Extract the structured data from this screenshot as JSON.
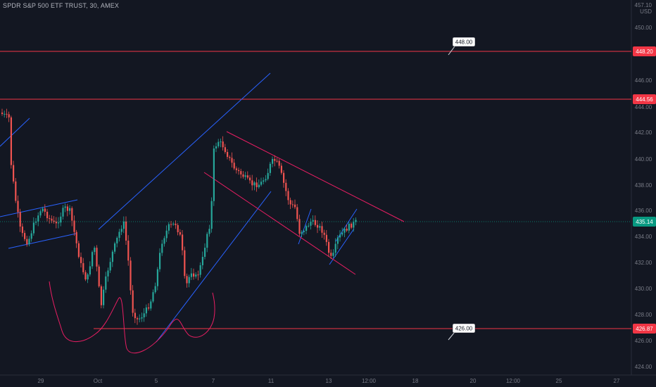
{
  "header": {
    "symbol_title": "SPDR S&P 500 ETF TRUST, 30, AMEX",
    "currency_top": "457.10",
    "currency": "USD"
  },
  "price_axis": {
    "ticks": [
      "450.00",
      "446.00",
      "444.00",
      "442.00",
      "440.00",
      "438.00",
      "436.00",
      "434.00",
      "432.00",
      "430.00",
      "428.00",
      "426.00",
      "424.00"
    ]
  },
  "time_axis": {
    "labels": [
      "29",
      "Oct",
      "5",
      "7",
      "11",
      "13",
      "12:00",
      "18",
      "20",
      "12:00",
      "25",
      "27"
    ]
  },
  "levels": {
    "upper_red": "448.20",
    "mid_red": "444.56",
    "lower_red": "426.87",
    "current": "435.14"
  },
  "callouts": {
    "upper": "448.00",
    "lower": "426.00"
  },
  "colors": {
    "background": "#131722",
    "up_candle": "#26a69a",
    "down_candle": "#ef5350",
    "level_line": "#f23645",
    "trend_blue": "#2962ff",
    "channel_pink": "#e91e63",
    "current_badge": "#089981"
  }
}
